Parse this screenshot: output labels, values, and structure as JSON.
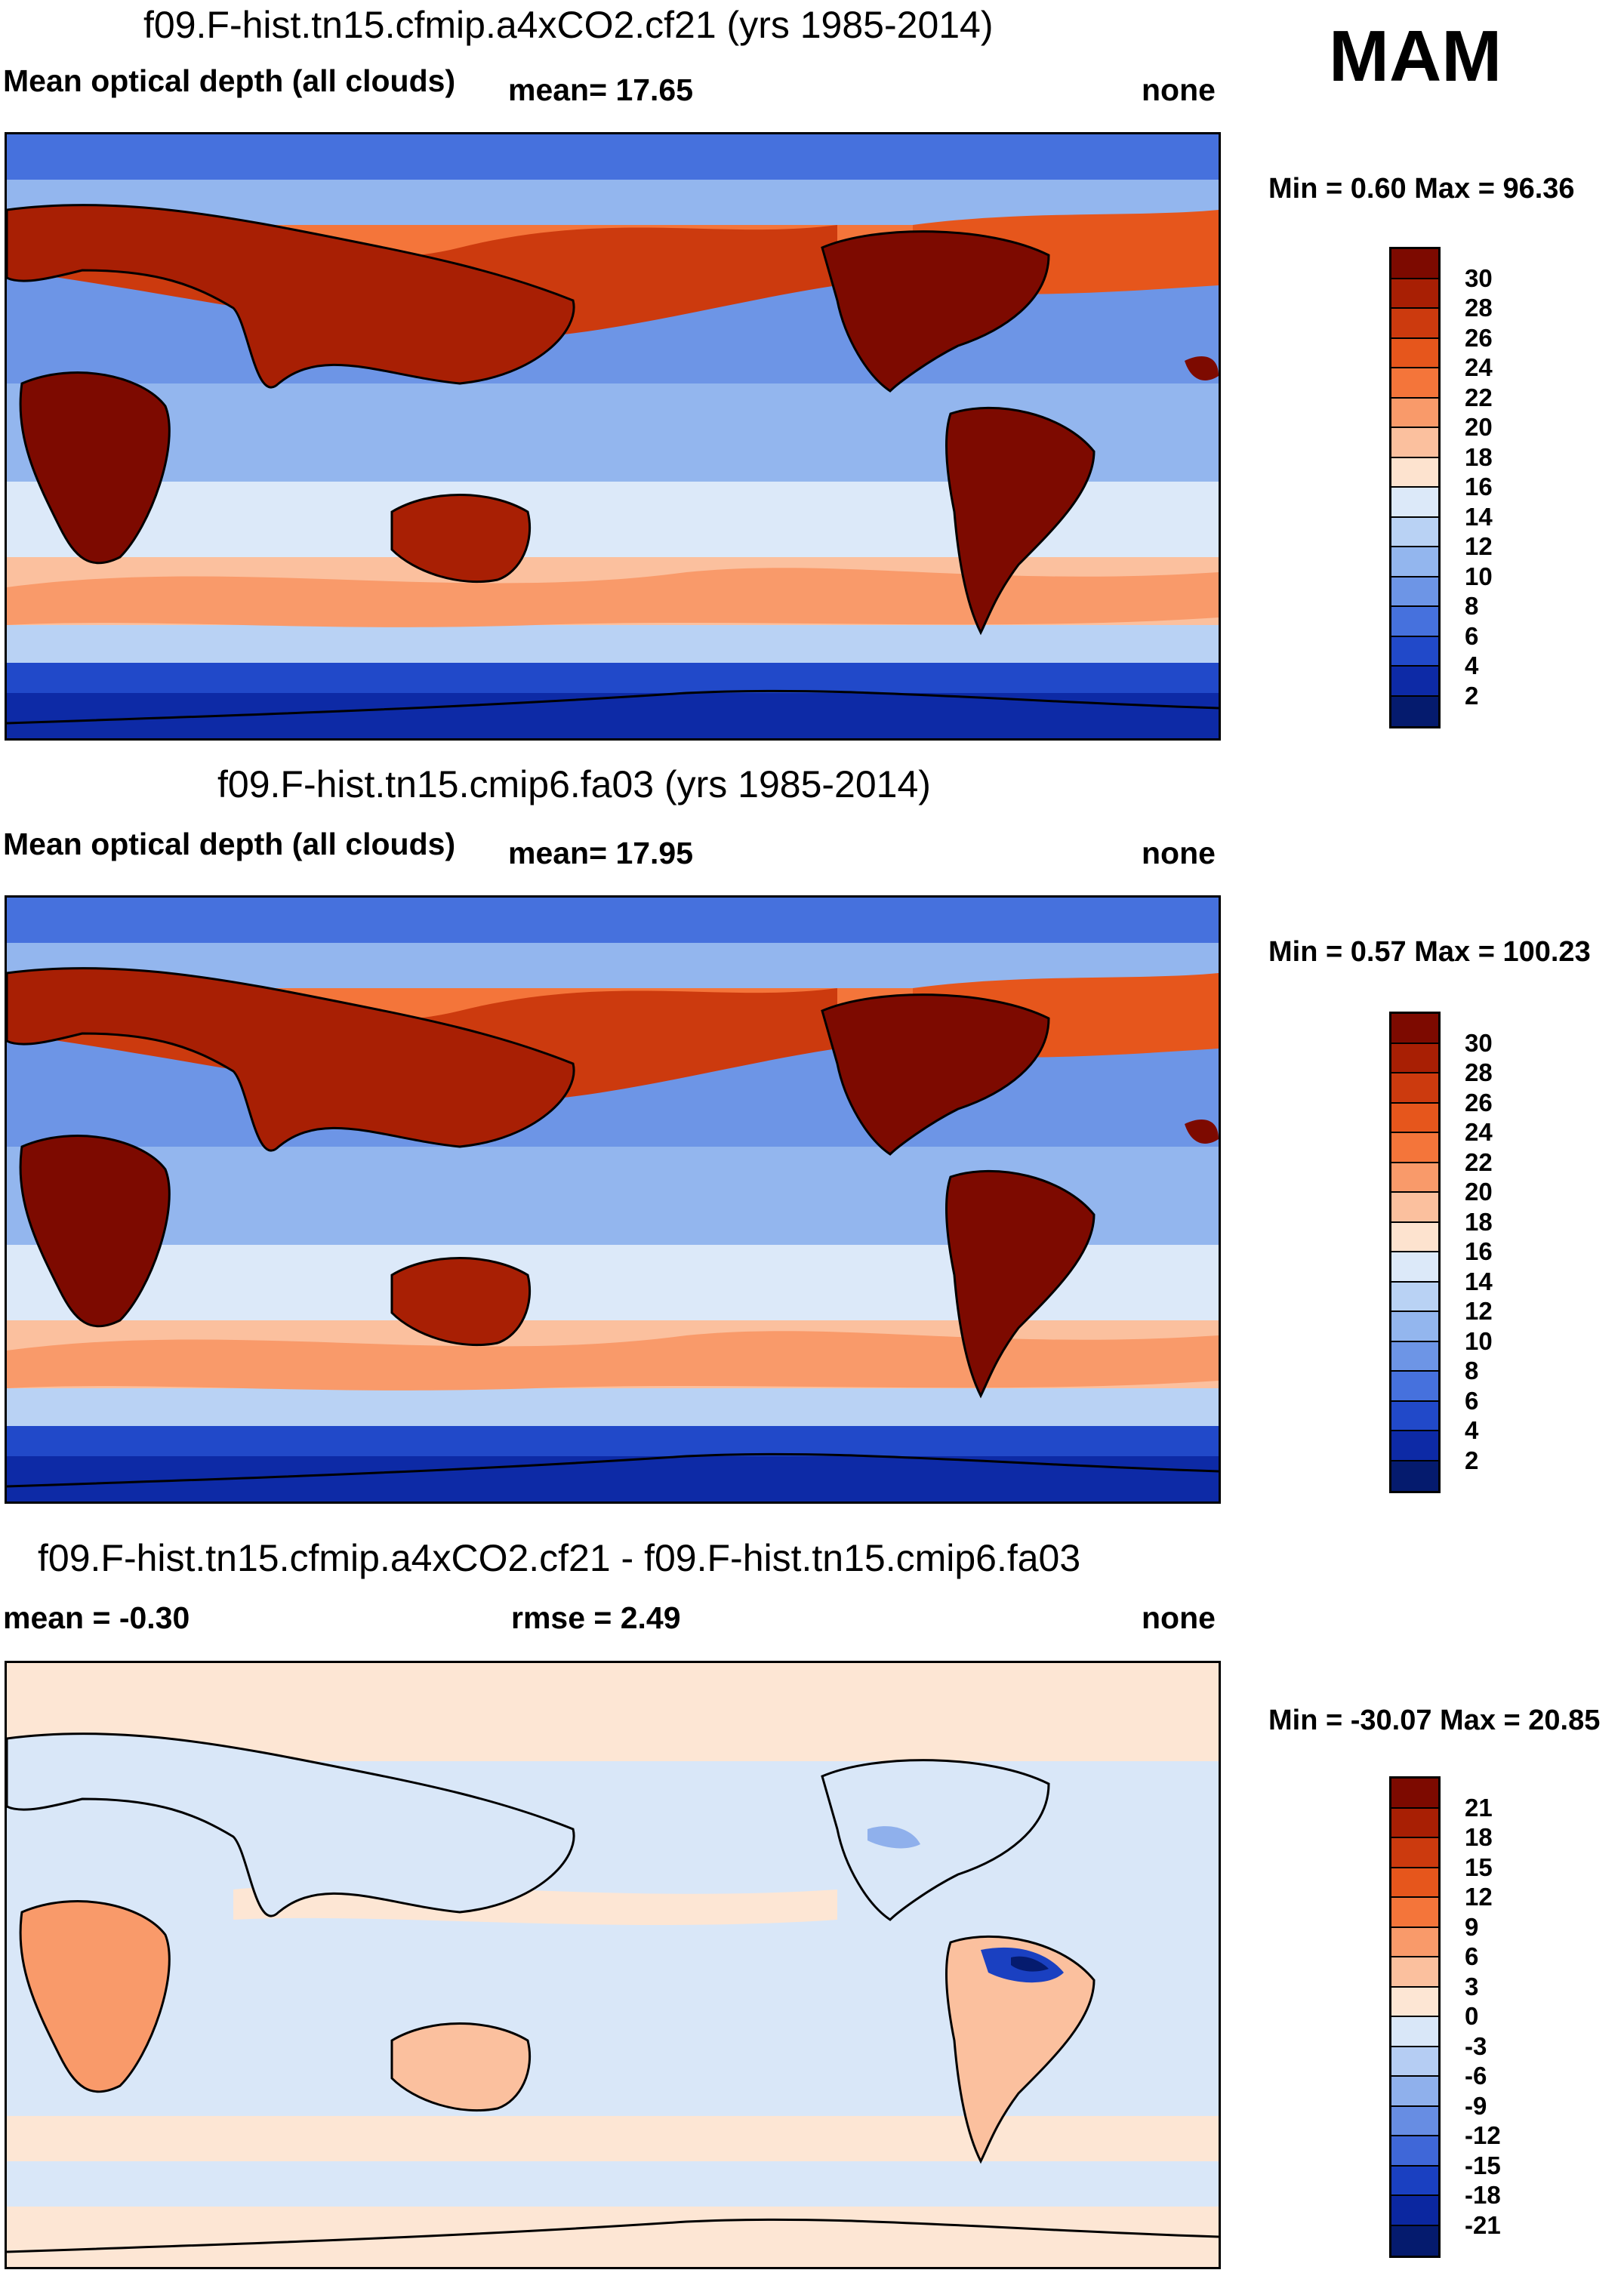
{
  "season": "MAM",
  "panels": [
    {
      "title": "f09.F-hist.tn15.cfmip.a4xCO2.cf21 (yrs 1985-2014)",
      "variable": "Mean optical depth (all clouds)",
      "mean_label": "mean=  17.65",
      "units": "none",
      "minmax": "Min =   0.60 Max =  96.36"
    },
    {
      "title": "f09.F-hist.tn15.cmip6.fa03 (yrs 1985-2014)",
      "variable": "Mean optical depth (all clouds)",
      "mean_label": "mean=  17.95",
      "units": "none",
      "minmax": "Min =   0.57 Max = 100.23"
    },
    {
      "title": "f09.F-hist.tn15.cfmip.a4xCO2.cf21 - f09.F-hist.tn15.cmip6.fa03",
      "variable": "mean =  -0.30",
      "mean_label": "rmse =   2.49",
      "units": "none",
      "minmax": "Min = -30.07 Max =  20.85"
    }
  ],
  "chart_data": [
    {
      "type": "heatmap",
      "title": "f09.F-hist.tn15.cfmip.a4xCO2.cf21 (yrs 1985-2014)",
      "field": "Mean optical depth (all clouds)",
      "mean": 17.65,
      "min": 0.6,
      "max": 96.36,
      "units": "none",
      "colorbar_levels": [
        "30",
        "28",
        "26",
        "24",
        "22",
        "20",
        "18",
        "16",
        "14",
        "12",
        "10",
        "8",
        "6",
        "4",
        "2"
      ],
      "colorbar_colors": [
        "#7d0a00",
        "#a81f04",
        "#cc3a0e",
        "#e6561c",
        "#f4753a",
        "#f99a6a",
        "#fbc09e",
        "#fde3cf",
        "#dce9f9",
        "#b9d2f4",
        "#93b6ee",
        "#6d95e6",
        "#4671dd",
        "#2149c9",
        "#0d2aa6",
        "#051b6e"
      ]
    },
    {
      "type": "heatmap",
      "title": "f09.F-hist.tn15.cmip6.fa03 (yrs 1985-2014)",
      "field": "Mean optical depth (all clouds)",
      "mean": 17.95,
      "min": 0.57,
      "max": 100.23,
      "units": "none",
      "colorbar_levels": [
        "30",
        "28",
        "26",
        "24",
        "22",
        "20",
        "18",
        "16",
        "14",
        "12",
        "10",
        "8",
        "6",
        "4",
        "2"
      ],
      "colorbar_colors": [
        "#7d0a00",
        "#a81f04",
        "#cc3a0e",
        "#e6561c",
        "#f4753a",
        "#f99a6a",
        "#fbc09e",
        "#fde3cf",
        "#dce9f9",
        "#b9d2f4",
        "#93b6ee",
        "#6d95e6",
        "#4671dd",
        "#2149c9",
        "#0d2aa6",
        "#051b6e"
      ]
    },
    {
      "type": "heatmap",
      "title": "f09.F-hist.tn15.cfmip.a4xCO2.cf21 - f09.F-hist.tn15.cmip6.fa03",
      "field": "difference",
      "mean": -0.3,
      "rmse": 2.49,
      "min": -30.07,
      "max": 20.85,
      "units": "none",
      "colorbar_levels": [
        "21",
        "18",
        "15",
        "12",
        "9",
        "6",
        "3",
        "0",
        "-3",
        "-6",
        "-9",
        "-12",
        "-15",
        "-18",
        "-21"
      ],
      "colorbar_colors": [
        "#7d0a00",
        "#a81f04",
        "#cc3a0e",
        "#e6561c",
        "#f4753a",
        "#f99a6a",
        "#fbc09e",
        "#fde6d4",
        "#d9e7f8",
        "#b5cdf3",
        "#8fb0ec",
        "#678de3",
        "#3f67d8",
        "#1a40c1",
        "#0b27a0",
        "#051b6e"
      ]
    }
  ]
}
